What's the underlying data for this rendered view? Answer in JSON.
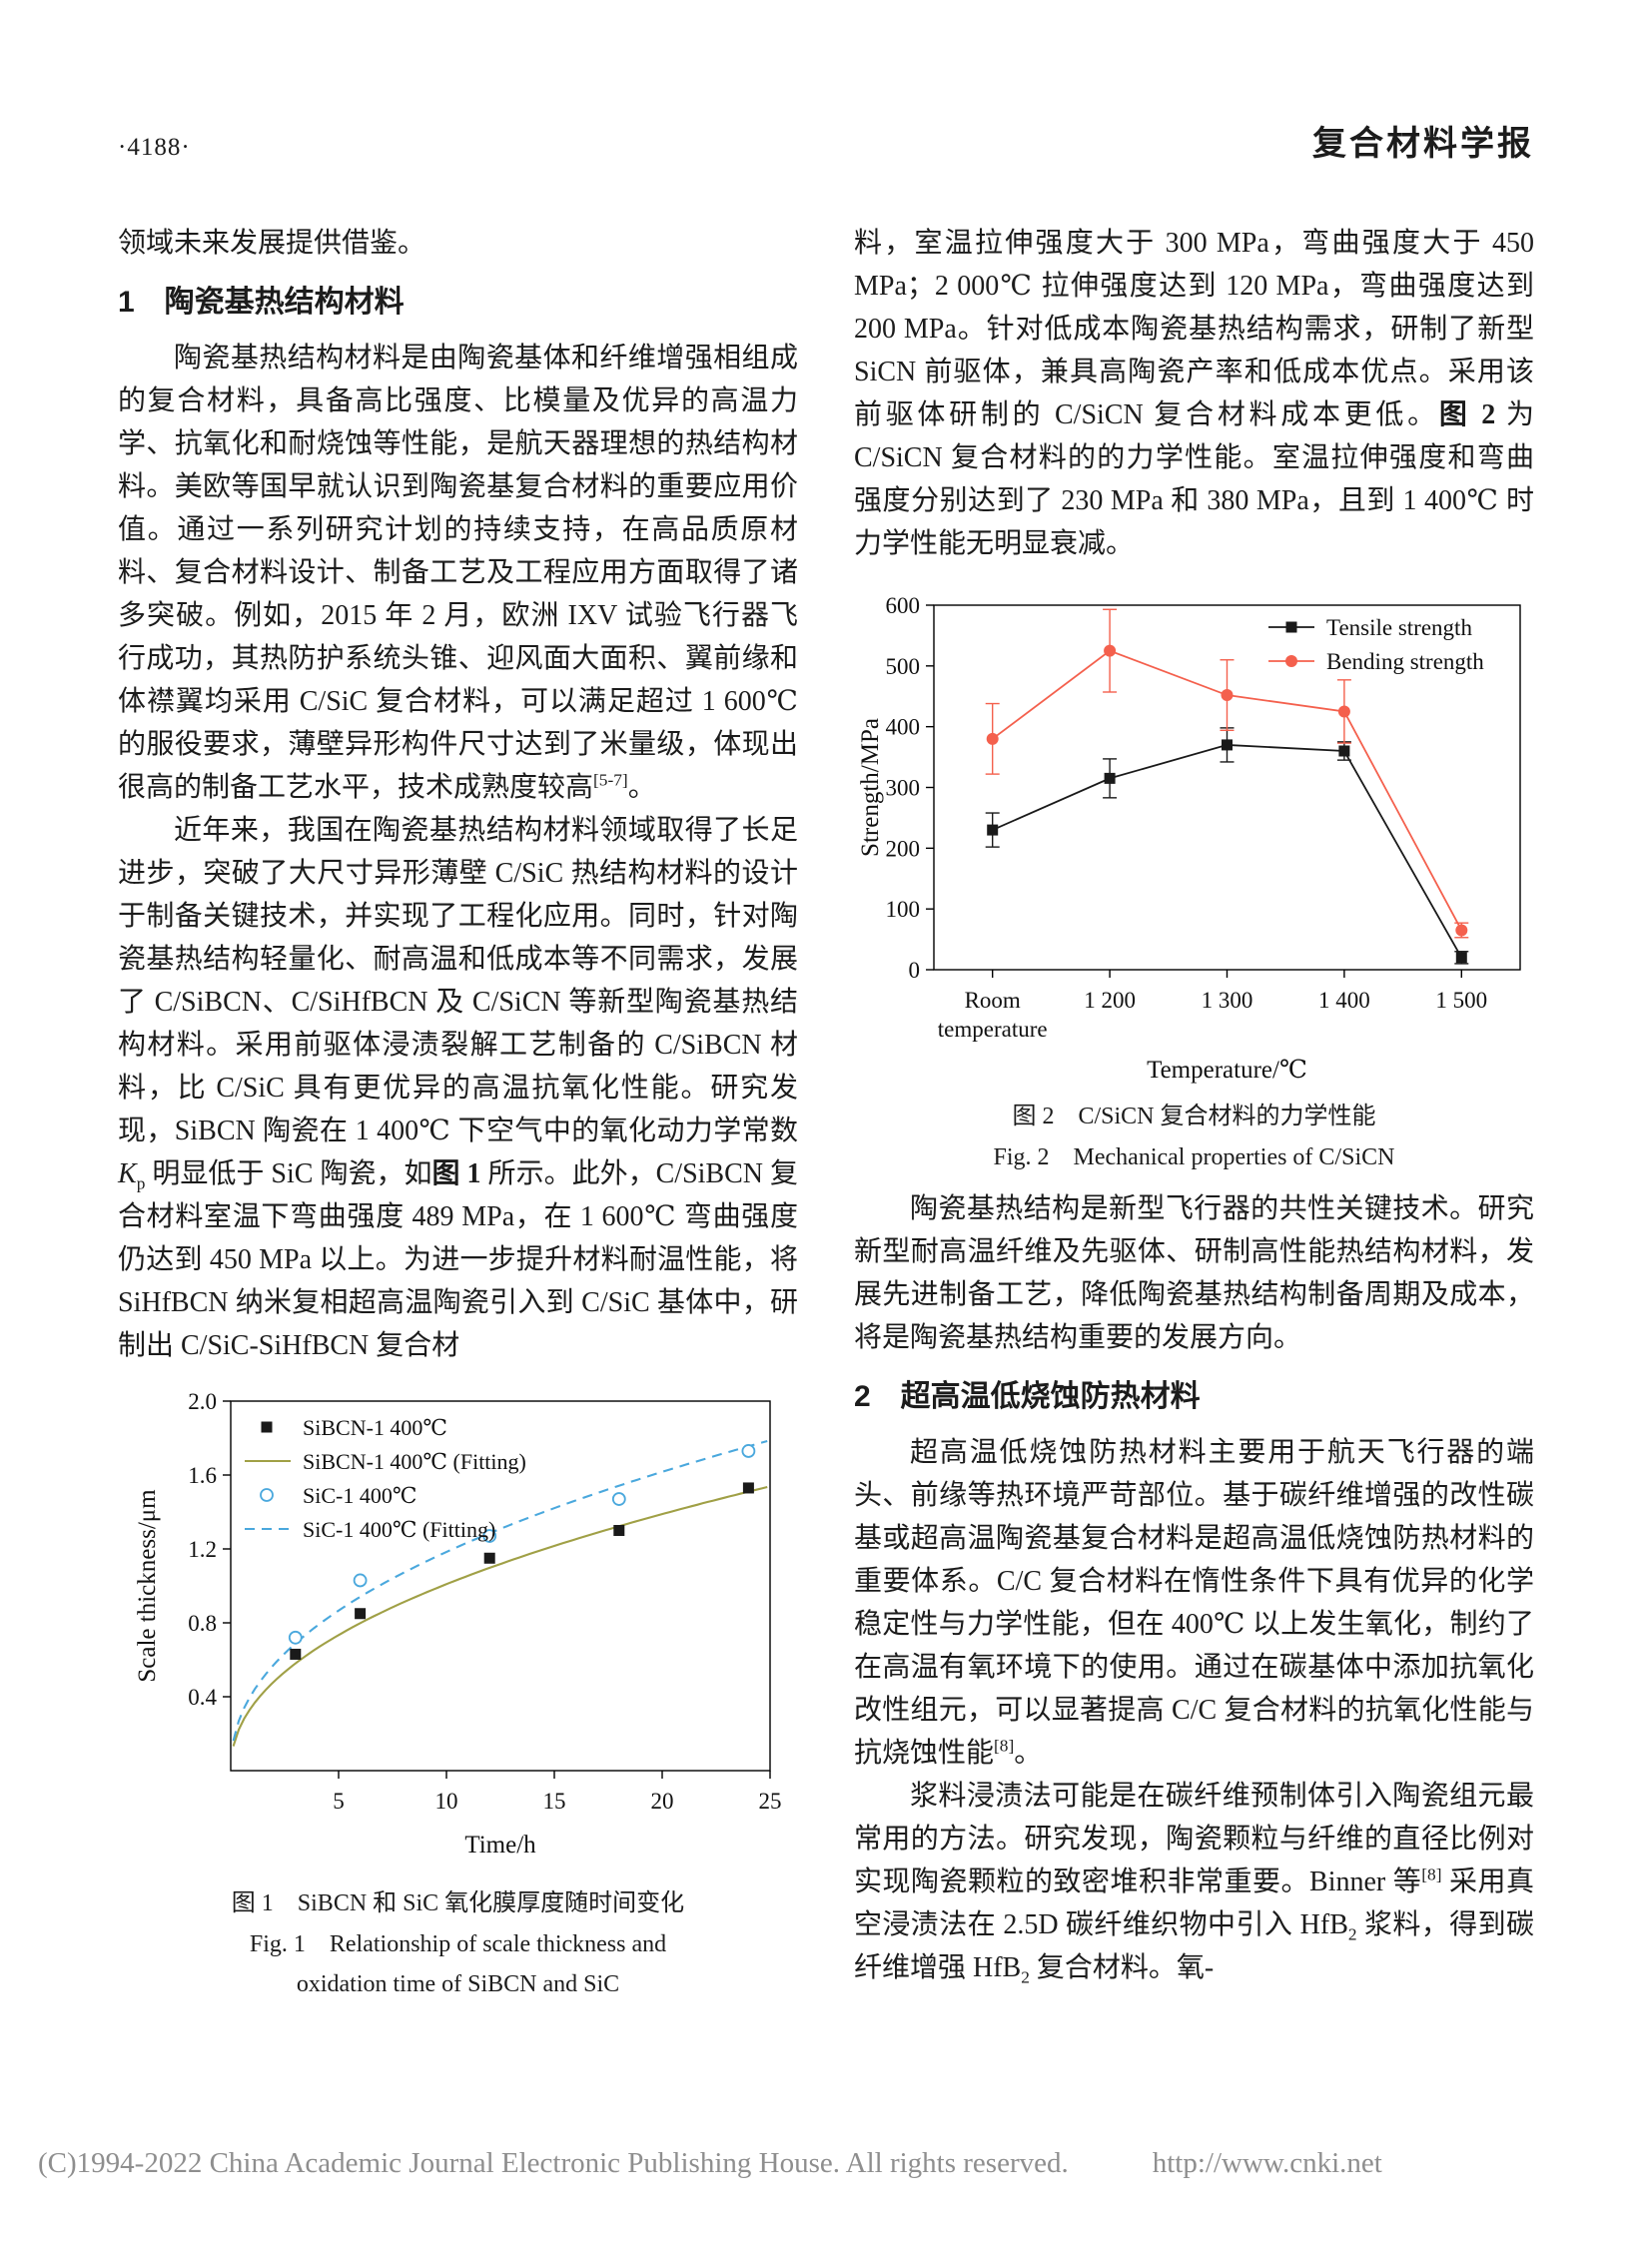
{
  "header": {
    "page_number": "·4188·",
    "journal_title": "复合材料学报"
  },
  "footer": {
    "copyright": "(C)1994-2022 China Academic Journal Electronic Publishing House. All rights reserved.",
    "url": "http://www.cnki.net"
  },
  "left_column": {
    "fragment": "领域未来发展提供借鉴。",
    "section1_heading": "1　陶瓷基热结构材料",
    "para1": [
      {
        "t": "陶瓷基热结构材料是由陶瓷基体和纤维增强相组成的复合材料，具备高比强度、比模量及优异的高温力学、抗氧化和耐烧蚀等性能，是航天器理想的热结构材料。美欧等国早就认识到陶瓷基复合材料的重要应用价值。通过一系列研究计划的持续支持，在高品质原材料、复合材料设计、制备工艺及工程应用方面取得了诸多突破。例如，2015 年 2 月，欧洲 IXV 试验飞行器飞行成功，其热防护系统头锥、迎风面大面积、翼前缘和体襟翼均采用 C/SiC 复合材料，可以满足超过 1 600℃ 的服役要求，薄壁异形构件尺寸达到了米量级，体现出很高的制备工艺水平，技术成熟度较高"
      },
      {
        "t": "[5-7]",
        "s": "sup"
      },
      {
        "t": "。"
      }
    ],
    "para2": [
      {
        "t": "近年来，我国在陶瓷基热结构材料领域取得了长足进步，突破了大尺寸异形薄壁 C/SiC 热结构材料的设计于制备关键技术，并实现了工程化应用。同时，针对陶瓷基热结构轻量化、耐高温和低成本等不同需求，发展了 C/SiBCN、C/SiHfBCN 及 C/SiCN 等新型陶瓷基热结构材料。采用前驱体浸渍裂解工艺制备的 C/SiBCN 材料，比 C/SiC 具有更优异的高温抗氧化性能。研究发现，SiBCN 陶瓷在 1 400℃ 下空气中的氧化动力学常数 "
      },
      {
        "t": "K",
        "s": "i"
      },
      {
        "t": "p",
        "s": "sub"
      },
      {
        "t": " 明显低于 SiC 陶瓷，如"
      },
      {
        "t": "图 1",
        "s": "b"
      },
      {
        "t": " 所示。此外，C/SiBCN 复合材料室温下弯曲强度 489 MPa，在 1 600℃ 弯曲强度仍达到 450 MPa 以上。为进一步提升材料耐温性能，将 SiHfBCN 纳米复相超高温陶瓷引入到 C/SiC 基体中，研制出 C/SiC-SiHfBCN 复合材"
      }
    ],
    "figure1_caption_zh": "图 1　SiBCN 和 SiC 氧化膜厚度随时间变化",
    "figure1_caption_en_line1": "Fig. 1　Relationship of scale thickness and",
    "figure1_caption_en_line2": "oxidation time of SiBCN and SiC"
  },
  "right_column": {
    "para_cont": [
      {
        "t": "料，室温拉伸强度大于 300 MPa，弯曲强度大于 450 MPa；2 000℃ 拉伸强度达到 120 MPa，弯曲强度达到 200 MPa。针对低成本陶瓷基热结构需求，研制了新型 SiCN 前驱体，兼具高陶瓷产率和低成本优点。采用该前驱体研制的 C/SiCN 复合材料成本更低。"
      },
      {
        "t": "图 2",
        "s": "b"
      },
      {
        "t": " 为 C/SiCN 复合材料的的力学性能。室温拉伸强度和弯曲强度分别达到了 230 MPa 和 380 MPa，且到 1 400℃ 时力学性能无明显衰减。"
      }
    ],
    "figure2_caption_zh": "图 2　C/SiCN 复合材料的力学性能",
    "figure2_caption_en": "Fig. 2　Mechanical properties of C/SiCN",
    "para_summary": "陶瓷基热结构是新型飞行器的共性关键技术。研究新型耐高温纤维及先驱体、研制高性能热结构材料，发展先进制备工艺，降低陶瓷基热结构制备周期及成本，将是陶瓷基热结构重要的发展方向。",
    "section2_heading": "2　超高温低烧蚀防热材料",
    "para3": [
      {
        "t": "超高温低烧蚀防热材料主要用于航天飞行器的端头、前缘等热环境严苛部位。基于碳纤维增强的改性碳基或超高温陶瓷基复合材料是超高温低烧蚀防热材料的重要体系。C/C 复合材料在惰性条件下具有优异的化学稳定性与力学性能，但在 400℃ 以上发生氧化，制约了在高温有氧环境下的使用。通过在碳基体中添加抗氧化改性组元，可以显著提高 C/C 复合材料的抗氧化性能与抗烧蚀性能"
      },
      {
        "t": "[8]",
        "s": "sup"
      },
      {
        "t": "。"
      }
    ],
    "para4": [
      {
        "t": "浆料浸渍法可能是在碳纤维预制体引入陶瓷组元最常用的方法。研究发现，陶瓷颗粒与纤维的直径比例对实现陶瓷颗粒的致密堆积非常重要。Binner 等"
      },
      {
        "t": "[8]",
        "s": "sup"
      },
      {
        "t": " 采用真空浸渍法在 2.5D 碳纤维织物中引入 HfB"
      },
      {
        "t": "2",
        "s": "sub"
      },
      {
        "t": " 浆料，得到碳纤维增强 HfB"
      },
      {
        "t": "2",
        "s": "sub"
      },
      {
        "t": " 复合材料。氧-"
      }
    ]
  },
  "chart_data": [
    {
      "id": "fig2",
      "type": "line",
      "title": "",
      "xlabel": "Temperature/℃",
      "ylabel": "Strength/MPa",
      "x_categories": [
        "Room\ntemperature",
        "1 200",
        "1 300",
        "1 400",
        "1 500"
      ],
      "ylim": [
        0,
        600
      ],
      "yticks": [
        0,
        100,
        200,
        300,
        400,
        500,
        600
      ],
      "grid": false,
      "legend_position": "top-right",
      "series": [
        {
          "name": "Tensile strength",
          "color": "#1a1a1a",
          "marker": "square",
          "values": [
            230,
            315,
            370,
            360,
            20
          ],
          "errors": [
            28,
            32,
            28,
            15,
            10
          ]
        },
        {
          "name": "Bending strength",
          "color": "#f4604d",
          "marker": "circle",
          "values": [
            380,
            525,
            452,
            425,
            65
          ],
          "errors": [
            58,
            68,
            58,
            52,
            12
          ]
        }
      ]
    },
    {
      "id": "fig1",
      "type": "scatter",
      "title": "",
      "xlabel": "Time/h",
      "ylabel": "Scale thickness/μm",
      "xlim": [
        0,
        25
      ],
      "xticks": [
        5,
        10,
        15,
        20,
        25
      ],
      "ylim": [
        0,
        2.0
      ],
      "yticks": [
        0.4,
        0.8,
        1.2,
        1.6,
        2.0
      ],
      "grid": false,
      "legend_position": "top-left",
      "series": [
        {
          "name": "SiBCN-1 400℃",
          "color": "#1a1a1a",
          "marker": "square",
          "points": [
            [
              3,
              0.63
            ],
            [
              6,
              0.85
            ],
            [
              12,
              1.15
            ],
            [
              18,
              1.3
            ],
            [
              24,
              1.53
            ]
          ]
        },
        {
          "name": "SiBCN-1 400℃ (Fitting)",
          "color": "#a0a046",
          "line": "solid",
          "fit": {
            "a": 0.35,
            "b": 0.46
          }
        },
        {
          "name": "SiC-1 400℃",
          "color": "#4aa8dd",
          "marker": "circle-open",
          "points": [
            [
              3,
              0.72
            ],
            [
              6,
              1.03
            ],
            [
              12,
              1.27
            ],
            [
              18,
              1.47
            ],
            [
              24,
              1.73
            ]
          ]
        },
        {
          "name": "SiC-1 400℃ (Fitting)",
          "color": "#4aa8dd",
          "line": "dashed",
          "fit": {
            "a": 0.42,
            "b": 0.45
          }
        }
      ]
    }
  ]
}
